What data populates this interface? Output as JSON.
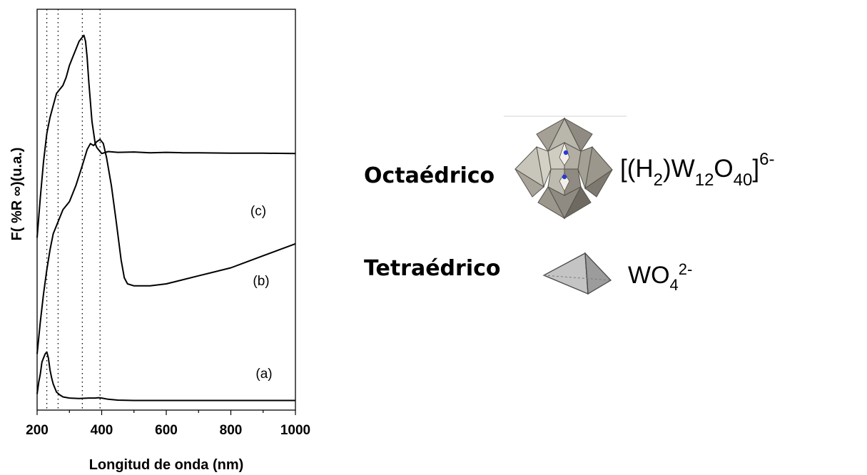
{
  "chart_data": {
    "type": "line",
    "xlabel": "Longitud de onda (nm)",
    "ylabel": "F( %R ∞)(u.a.)",
    "xlim": [
      200,
      1000
    ],
    "ylim": [
      0,
      1
    ],
    "xticks": [
      200,
      400,
      600,
      800,
      1000
    ],
    "grid": false,
    "reference_lines_x": [
      230,
      265,
      340,
      395
    ],
    "series": [
      {
        "name": "(a)",
        "x": [
          200,
          205,
          210,
          215,
          220,
          225,
          230,
          235,
          240,
          245,
          250,
          260,
          270,
          280,
          300,
          330,
          360,
          380,
          390,
          400,
          420,
          450,
          500,
          600,
          700,
          800,
          900,
          1000
        ],
        "y": [
          0.04,
          0.07,
          0.09,
          0.12,
          0.13,
          0.14,
          0.145,
          0.13,
          0.1,
          0.08,
          0.065,
          0.045,
          0.038,
          0.033,
          0.03,
          0.029,
          0.03,
          0.03,
          0.031,
          0.03,
          0.027,
          0.025,
          0.024,
          0.024,
          0.024,
          0.024,
          0.024,
          0.024
        ]
      },
      {
        "name": "(b)",
        "x": [
          200,
          210,
          220,
          230,
          240,
          250,
          265,
          280,
          300,
          320,
          340,
          355,
          365,
          375,
          385,
          395,
          405,
          415,
          430,
          445,
          460,
          470,
          480,
          500,
          550,
          600,
          650,
          700,
          750,
          800,
          850,
          900,
          950,
          1000
        ],
        "y": [
          0.14,
          0.22,
          0.29,
          0.35,
          0.4,
          0.44,
          0.47,
          0.5,
          0.52,
          0.56,
          0.61,
          0.65,
          0.665,
          0.66,
          0.67,
          0.675,
          0.665,
          0.63,
          0.56,
          0.47,
          0.375,
          0.33,
          0.315,
          0.31,
          0.31,
          0.315,
          0.325,
          0.335,
          0.345,
          0.355,
          0.37,
          0.385,
          0.4,
          0.415
        ]
      },
      {
        "name": "(c)",
        "x": [
          200,
          210,
          220,
          230,
          240,
          250,
          260,
          270,
          280,
          290,
          300,
          310,
          320,
          330,
          340,
          345,
          350,
          355,
          360,
          370,
          380,
          385,
          390,
          400,
          420,
          450,
          500,
          550,
          600,
          650,
          700,
          800,
          900,
          1000
        ],
        "y": [
          0.43,
          0.53,
          0.62,
          0.69,
          0.73,
          0.76,
          0.79,
          0.8,
          0.81,
          0.83,
          0.86,
          0.88,
          0.9,
          0.92,
          0.93,
          0.935,
          0.92,
          0.88,
          0.82,
          0.72,
          0.665,
          0.655,
          0.65,
          0.64,
          0.645,
          0.643,
          0.644,
          0.642,
          0.643,
          0.642,
          0.642,
          0.641,
          0.641,
          0.64
        ]
      }
    ]
  },
  "chart_labels": {
    "series": [
      "(c)",
      "(b)",
      "(a)"
    ]
  },
  "structures": {
    "octahedral": {
      "label": "Octaédrico",
      "formula": {
        "open": "[(H",
        "sub1": "2",
        "mid1": ")W",
        "sub2": "12",
        "mid2": "O",
        "sub3": "40",
        "close": "]",
        "sup": "6-"
      }
    },
    "tetrahedral": {
      "label": "Tetraédrico",
      "formula": {
        "base": "WO",
        "sub": "4",
        "sup": "2-"
      }
    }
  },
  "colors": {
    "line": "#000000",
    "polyhedron_light": "#c8c5bb",
    "polyhedron_mid": "#9b978d",
    "polyhedron_dark": "#6e6a62",
    "atom": "#2a3bd0"
  }
}
